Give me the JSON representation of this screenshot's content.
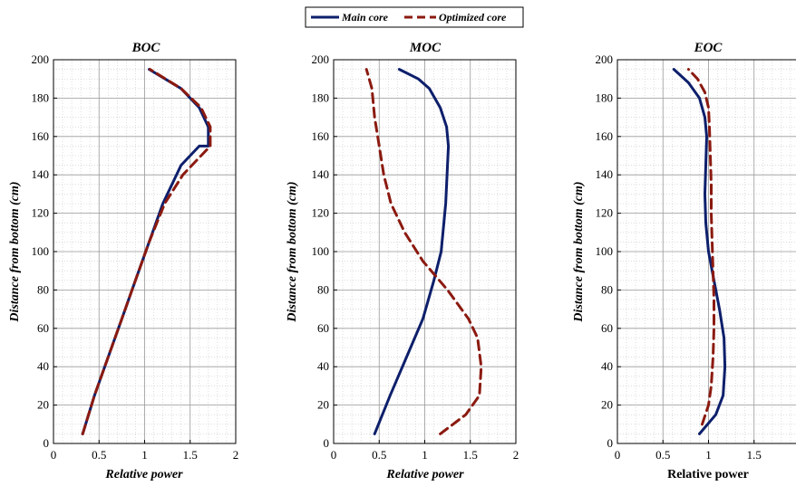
{
  "legend": {
    "entries": [
      {
        "label": "Main core",
        "color": "#0d1f6b",
        "style": "solid"
      },
      {
        "label": "Optimized core",
        "color": "#8b1a10",
        "style": "dashed"
      }
    ]
  },
  "chart_data": [
    {
      "type": "line",
      "title": "BOC",
      "xlabel": "Relative power",
      "ylabel": "Distance from bottom (cm)",
      "xlim": [
        0,
        2
      ],
      "ylim": [
        0,
        200
      ],
      "xticks": [
        0,
        0.5,
        1,
        1.5,
        2
      ],
      "xtick_labels": [
        "0",
        "0.5",
        "1",
        "1.5",
        "2"
      ],
      "yticks": [
        0,
        20,
        40,
        60,
        80,
        100,
        120,
        140,
        160,
        180,
        200
      ],
      "grid": true,
      "series": [
        {
          "name": "Main core",
          "color": "#0d1f6b",
          "style": "solid",
          "x": [
            0.32,
            0.45,
            0.6,
            0.75,
            0.9,
            1.05,
            1.2,
            1.4,
            1.6,
            1.7,
            1.7,
            1.6,
            1.4,
            1.05
          ],
          "y": [
            5,
            25,
            45,
            65,
            85,
            105,
            125,
            145,
            155,
            155,
            165,
            175,
            185,
            195
          ]
        },
        {
          "name": "Optimized core",
          "color": "#8b1a10",
          "style": "dashed",
          "x": [
            0.32,
            0.45,
            0.6,
            0.75,
            0.9,
            1.05,
            1.22,
            1.42,
            1.62,
            1.72,
            1.72,
            1.62,
            1.4,
            1.06
          ],
          "y": [
            5,
            25,
            45,
            65,
            85,
            105,
            125,
            140,
            150,
            155,
            165,
            175,
            185,
            195
          ]
        }
      ]
    },
    {
      "type": "line",
      "title": "MOC",
      "xlabel": "Relative power",
      "ylabel": "Distance from bottom (cm)",
      "xlim": [
        0,
        2
      ],
      "ylim": [
        0,
        200
      ],
      "xticks": [
        0,
        0.5,
        1,
        1.5,
        2
      ],
      "xtick_labels": [
        "0",
        "0.5",
        "1",
        "1.5",
        "2"
      ],
      "yticks": [
        0,
        20,
        40,
        60,
        80,
        100,
        120,
        140,
        160,
        180,
        200
      ],
      "grid": true,
      "series": [
        {
          "name": "Main core",
          "color": "#0d1f6b",
          "style": "solid",
          "x": [
            0.45,
            0.62,
            0.8,
            0.98,
            1.1,
            1.18,
            1.21,
            1.23,
            1.24,
            1.25,
            1.26,
            1.24,
            1.17,
            1.05,
            0.93,
            0.72
          ],
          "y": [
            5,
            25,
            45,
            65,
            85,
            100,
            115,
            125,
            135,
            145,
            155,
            165,
            175,
            185,
            190,
            195
          ]
        },
        {
          "name": "Optimized core",
          "color": "#8b1a10",
          "style": "dashed",
          "x": [
            1.17,
            1.45,
            1.6,
            1.62,
            1.58,
            1.48,
            1.25,
            0.98,
            0.78,
            0.63,
            0.55,
            0.5,
            0.45,
            0.42,
            0.36
          ],
          "y": [
            5,
            15,
            25,
            40,
            55,
            65,
            80,
            95,
            110,
            125,
            140,
            155,
            170,
            185,
            195
          ]
        }
      ]
    },
    {
      "type": "line",
      "title": "EOC",
      "xlabel": "Relative power",
      "ylabel": "Distance from bottom (cm)",
      "xlim": [
        0,
        2
      ],
      "ylim": [
        0,
        200
      ],
      "xticks": [
        0,
        0.5,
        1,
        1.5
      ],
      "xtick_labels": [
        "0",
        "0.5",
        "1",
        "1.5"
      ],
      "yticks": [
        0,
        20,
        40,
        60,
        80,
        100,
        120,
        140,
        160,
        180,
        200
      ],
      "grid": true,
      "series": [
        {
          "name": "Main core",
          "color": "#0d1f6b",
          "style": "solid",
          "x": [
            0.9,
            1.08,
            1.16,
            1.18,
            1.17,
            1.12,
            1.06,
            1.0,
            0.97,
            0.96,
            0.97,
            0.98,
            0.96,
            0.9,
            0.78,
            0.62
          ],
          "y": [
            5,
            15,
            25,
            40,
            55,
            70,
            85,
            100,
            115,
            130,
            145,
            160,
            170,
            180,
            188,
            195
          ]
        },
        {
          "name": "Optimized core",
          "color": "#8b1a10",
          "style": "dashed",
          "x": [
            0.93,
            1.0,
            1.03,
            1.05,
            1.06,
            1.06,
            1.05,
            1.04,
            1.03,
            1.03,
            1.02,
            1.01,
            1.0,
            0.96,
            0.88,
            0.78
          ],
          "y": [
            10,
            20,
            30,
            45,
            60,
            75,
            90,
            105,
            120,
            135,
            150,
            165,
            175,
            183,
            190,
            195
          ]
        }
      ]
    }
  ]
}
